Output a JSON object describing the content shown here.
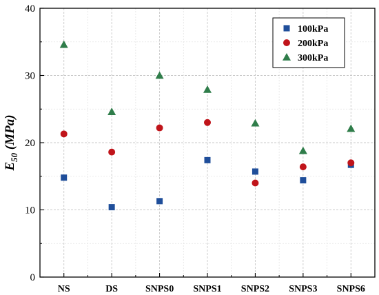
{
  "chart_data": {
    "type": "scatter",
    "categories": [
      "NS",
      "DS",
      "SNPS0",
      "SNPS1",
      "SNPS2",
      "SNPS3",
      "SNPS6"
    ],
    "ylabel": {
      "main": "E",
      "sub": "50",
      "unit": " (MPa)"
    },
    "ylim": [
      0,
      40
    ],
    "yticks": [
      0,
      10,
      20,
      30,
      40
    ],
    "grid": true,
    "legend_position": "top-right",
    "series": [
      {
        "name": "100kPa",
        "marker": "square",
        "color": "#1f4e9a",
        "values": [
          14.8,
          10.4,
          11.3,
          17.4,
          15.7,
          14.4,
          16.7
        ]
      },
      {
        "name": "200kPa",
        "marker": "circle",
        "color": "#c0141a",
        "values": [
          21.3,
          18.6,
          22.2,
          23.0,
          14.0,
          16.4,
          17.0
        ]
      },
      {
        "name": "300kPa",
        "marker": "triangle",
        "color": "#2f7d4a",
        "values": [
          34.6,
          24.6,
          30.0,
          27.9,
          22.9,
          18.8,
          22.1
        ]
      }
    ]
  }
}
